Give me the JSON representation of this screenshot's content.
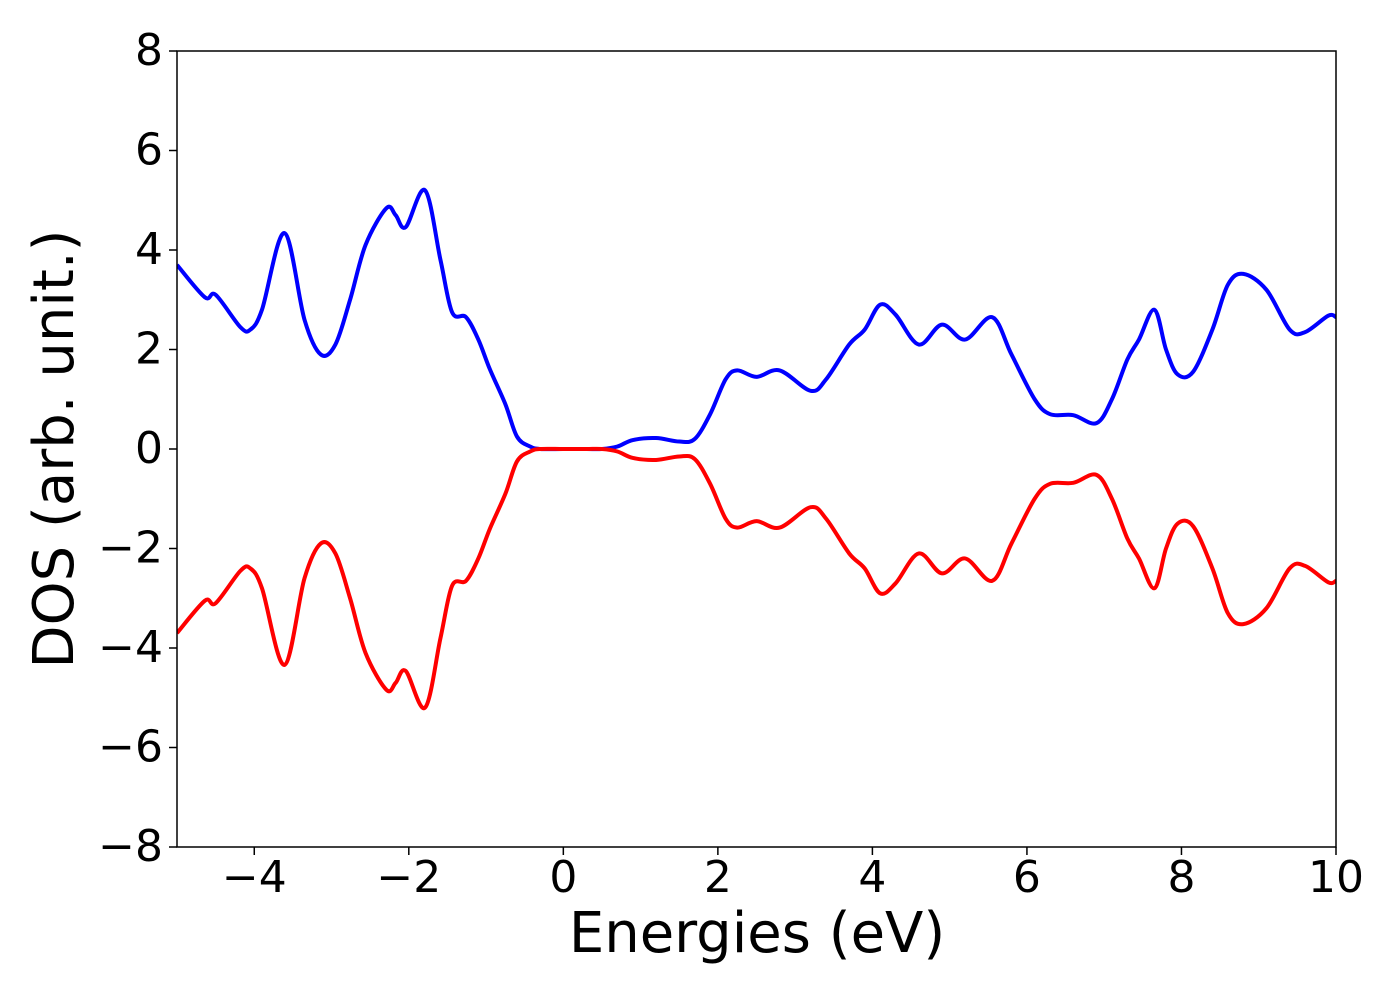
{
  "chart_data": {
    "type": "line",
    "xlabel": "Energies (eV)",
    "ylabel": "DOS (arb. unit.)",
    "x": [
      -5,
      -4.64,
      -4.5,
      -4.18,
      -4.05,
      -3.9,
      -3.61,
      -3.35,
      -3.14,
      -2.95,
      -2.76,
      -2.56,
      -2.29,
      -2.17,
      -2.04,
      -1.79,
      -1.59,
      -1.44,
      -1.26,
      -1.1,
      -0.95,
      -0.75,
      -0.6,
      -0.43,
      -0.3,
      0,
      0.3,
      0.5,
      0.7,
      0.9,
      1.2,
      1.5,
      1.7,
      1.9,
      2.1,
      2.25,
      2.5,
      2.8,
      3.2,
      3.4,
      3.7,
      3.9,
      4.1,
      4.3,
      4.6,
      4.9,
      5.2,
      5.55,
      5.8,
      6.1,
      6.3,
      6.6,
      6.9,
      7.1,
      7.3,
      7.45,
      7.65,
      7.8,
      7.95,
      8.15,
      8.4,
      8.6,
      8.8,
      9.1,
      9.4,
      9.6,
      9.9,
      10
    ],
    "series": [
      {
        "color": "#0000ff",
        "values": [
          3.7,
          3.05,
          3.1,
          2.45,
          2.4,
          2.8,
          4.34,
          2.6,
          1.9,
          2.1,
          3.0,
          4.1,
          4.84,
          4.7,
          4.46,
          5.2,
          3.8,
          2.75,
          2.65,
          2.2,
          1.6,
          0.9,
          0.25,
          0.05,
          0,
          0,
          0,
          0,
          0.05,
          0.18,
          0.22,
          0.15,
          0.2,
          0.7,
          1.4,
          1.58,
          1.45,
          1.58,
          1.17,
          1.4,
          2.1,
          2.4,
          2.9,
          2.7,
          2.1,
          2.5,
          2.2,
          2.65,
          1.9,
          1.0,
          0.7,
          0.68,
          0.52,
          1.0,
          1.8,
          2.2,
          2.8,
          2.0,
          1.5,
          1.55,
          2.4,
          3.3,
          3.52,
          3.2,
          2.4,
          2.35,
          2.68,
          2.65
        ]
      },
      {
        "color": "#ff0000",
        "values": [
          -3.7,
          -3.05,
          -3.1,
          -2.45,
          -2.4,
          -2.8,
          -4.34,
          -2.6,
          -1.9,
          -2.1,
          -3.0,
          -4.1,
          -4.84,
          -4.7,
          -4.46,
          -5.2,
          -3.8,
          -2.75,
          -2.65,
          -2.2,
          -1.6,
          -0.9,
          -0.25,
          -0.05,
          0,
          0,
          0,
          0,
          -0.05,
          -0.18,
          -0.22,
          -0.15,
          -0.2,
          -0.7,
          -1.4,
          -1.58,
          -1.45,
          -1.58,
          -1.17,
          -1.4,
          -2.1,
          -2.4,
          -2.9,
          -2.7,
          -2.1,
          -2.5,
          -2.2,
          -2.65,
          -1.9,
          -1.0,
          -0.7,
          -0.68,
          -0.52,
          -1.0,
          -1.8,
          -2.2,
          -2.8,
          -2.0,
          -1.5,
          -1.55,
          -2.4,
          -3.3,
          -3.52,
          -3.2,
          -2.4,
          -2.35,
          -2.68,
          -2.65
        ]
      }
    ],
    "xlim": [
      -5,
      10
    ],
    "xticks": [
      {
        "value": -4,
        "label": "−4"
      },
      {
        "value": -2,
        "label": "−2"
      },
      0,
      2,
      4,
      6,
      8,
      10
    ],
    "ylim": [
      -8,
      8
    ],
    "yticks": [
      {
        "value": -8,
        "label": "−8"
      },
      {
        "value": -6,
        "label": "−6"
      },
      {
        "value": -4,
        "label": "−4"
      },
      {
        "value": -2,
        "label": "−2"
      },
      0,
      2,
      4,
      6,
      8
    ],
    "grid": false
  }
}
